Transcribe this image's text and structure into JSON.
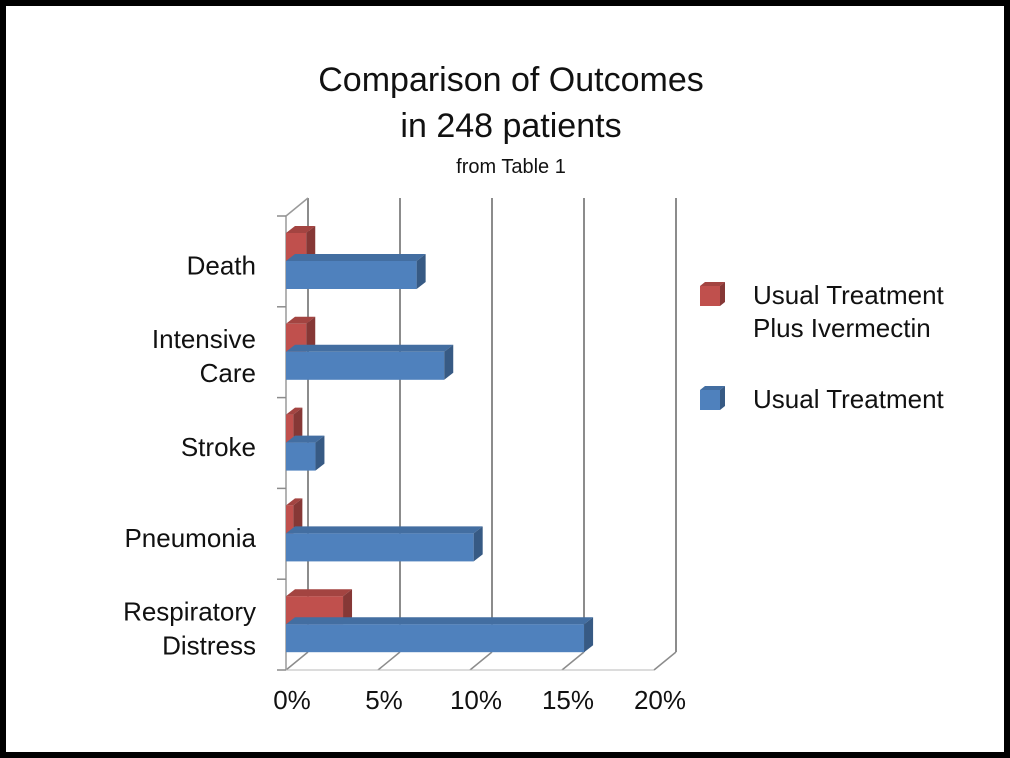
{
  "chart_data": {
    "type": "bar",
    "orientation": "horizontal",
    "title": "Comparison of Outcomes",
    "title_line2": "in 248 patients",
    "subtitle": "from Table 1",
    "categories": [
      "Death",
      "Intensive Care",
      "Stroke",
      "Pneumonia",
      "Respiratory Distress"
    ],
    "category_lines": [
      [
        "Death"
      ],
      [
        "Intensive",
        "Care"
      ],
      [
        "Stroke"
      ],
      [
        "Pneumonia"
      ],
      [
        "Respiratory",
        "Distress"
      ]
    ],
    "xlim": [
      0,
      20
    ],
    "x_ticks": [
      "0%",
      "5%",
      "10%",
      "15%",
      "20%"
    ],
    "grid": true,
    "legend_position": "right",
    "series": [
      {
        "name": "Usual Treatment Plus Ivermectin",
        "legend_lines": [
          "Usual Treatment",
          "Plus Ivermectin"
        ],
        "color": "#c0504d",
        "values": [
          1.1,
          1.1,
          0.4,
          0.4,
          3.1
        ]
      },
      {
        "name": "Usual Treatment",
        "legend_lines": [
          "Usual Treatment"
        ],
        "color": "#4f81bd",
        "values": [
          7.1,
          8.6,
          1.6,
          10.2,
          16.2
        ]
      }
    ]
  }
}
